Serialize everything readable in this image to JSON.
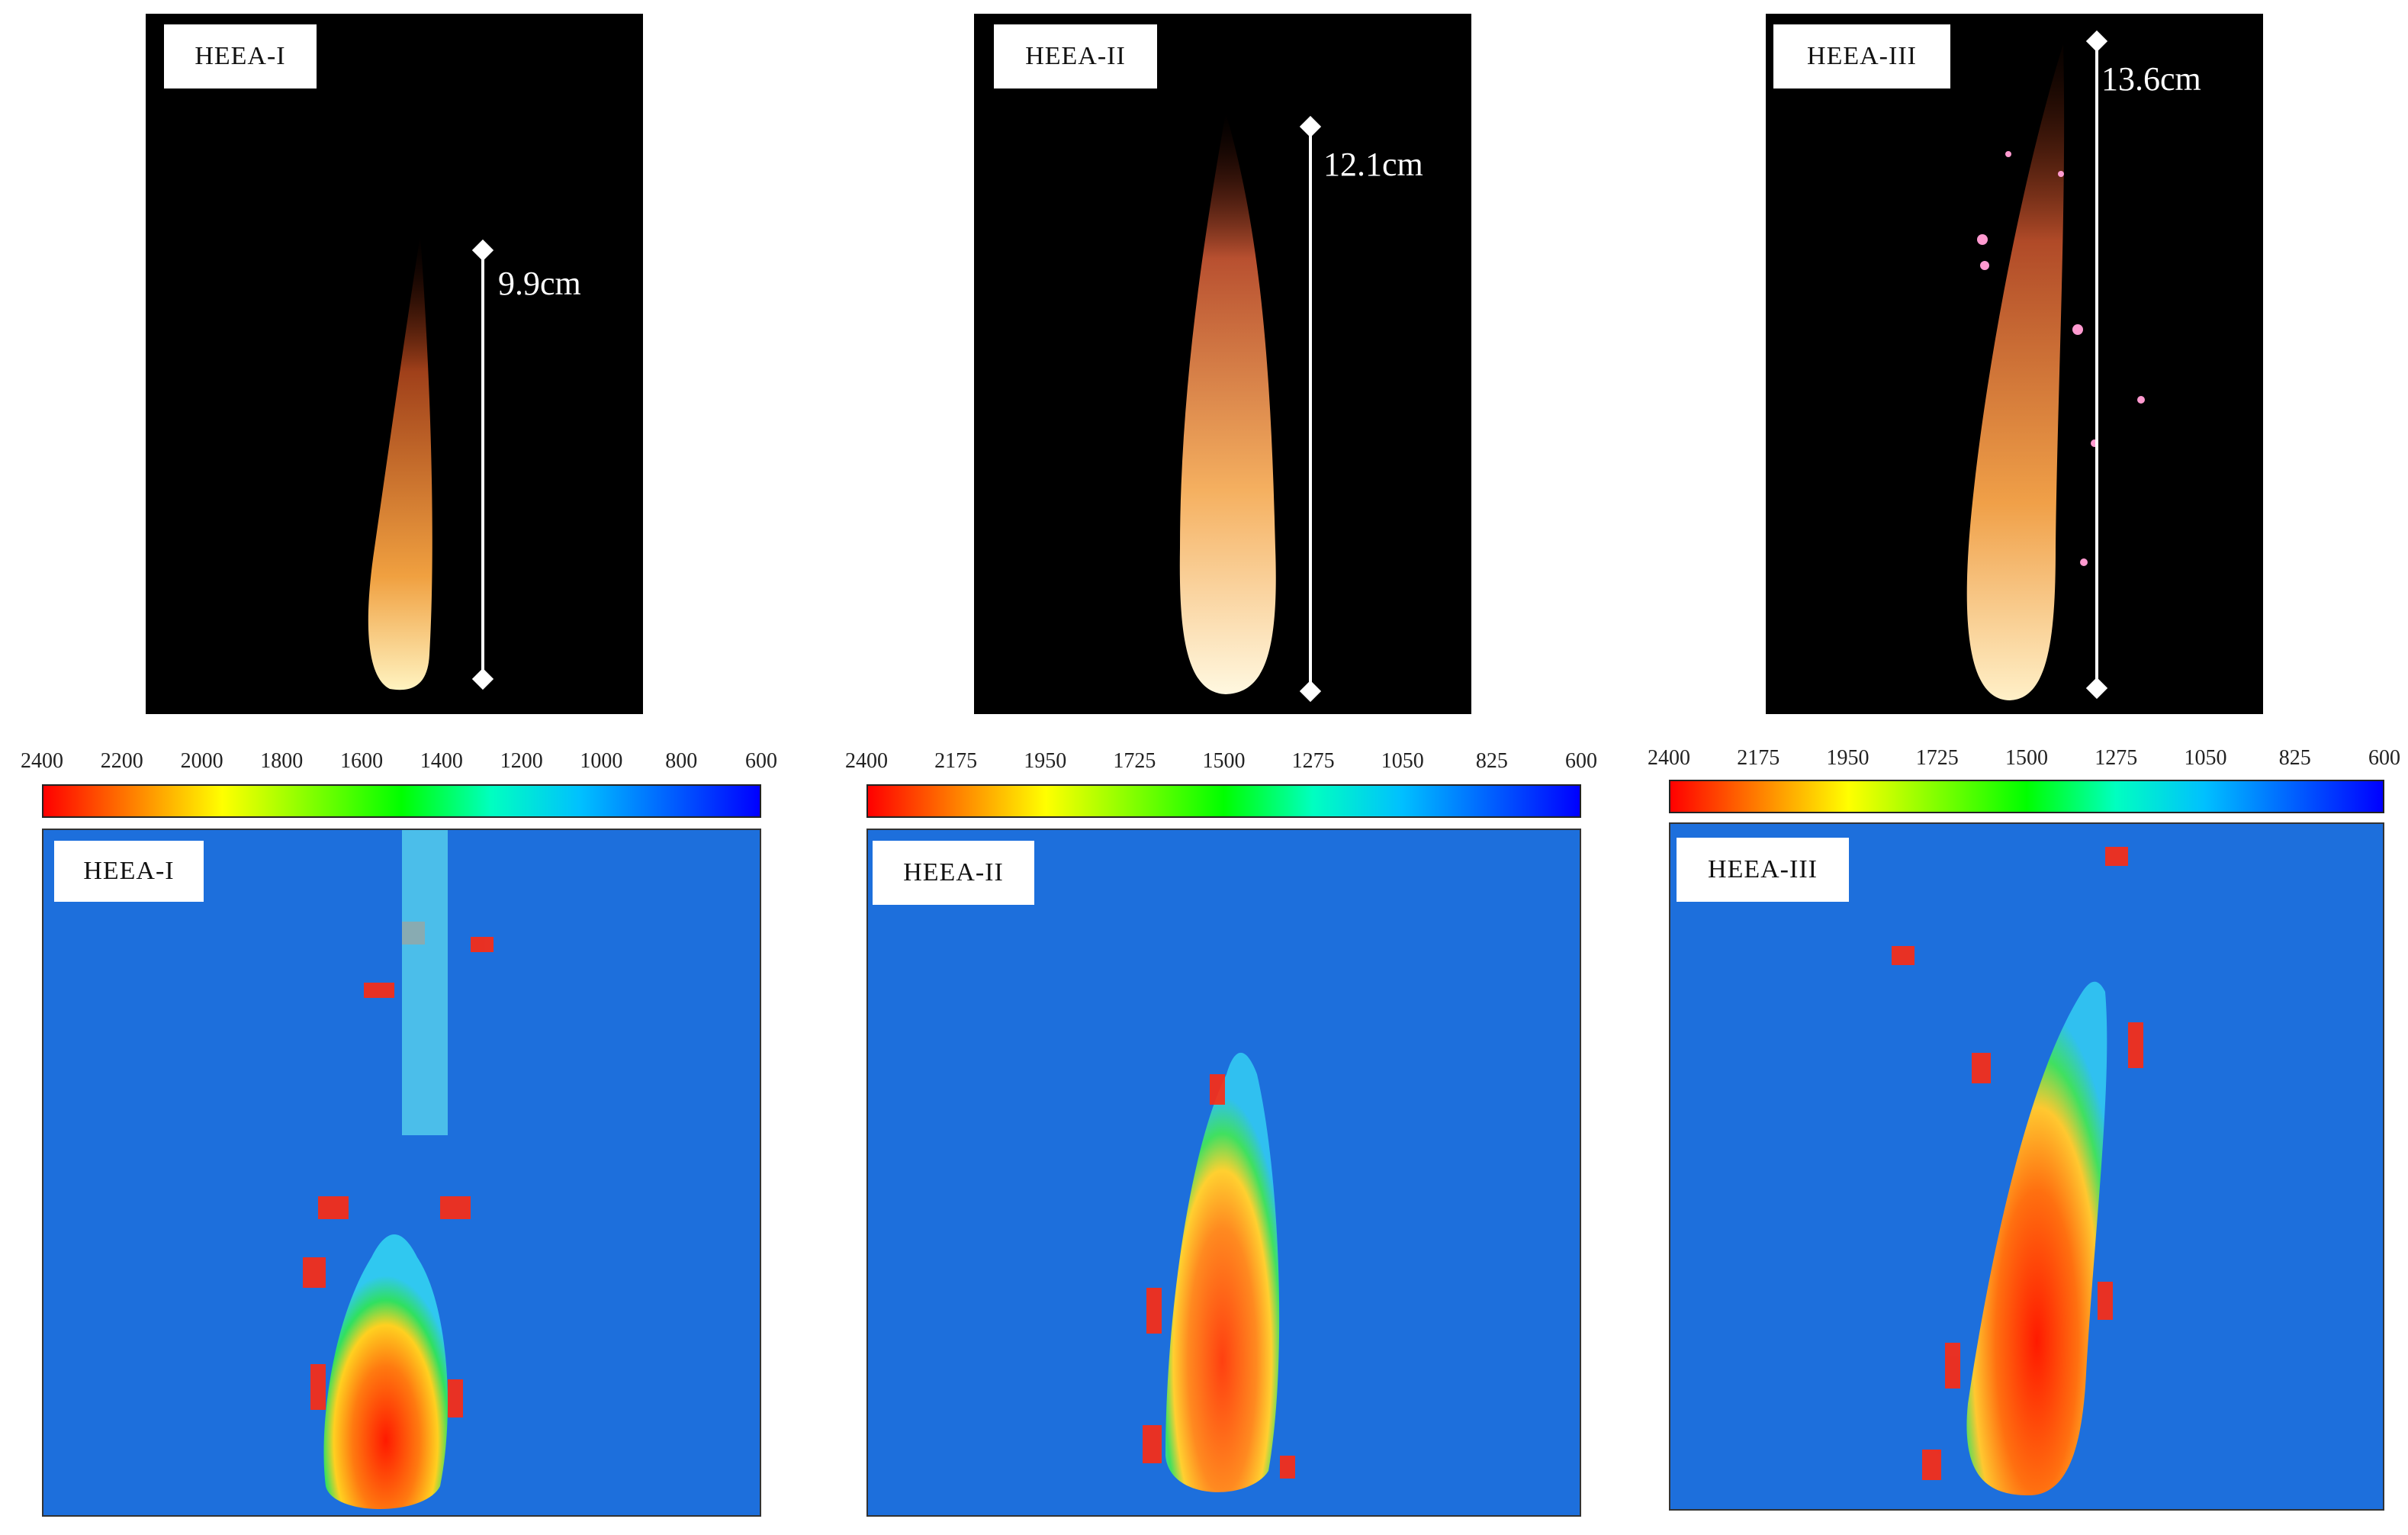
{
  "photos": [
    {
      "label": "HEEA-I",
      "height": "9.9cm"
    },
    {
      "label": "HEEA-II",
      "height": "12.1cm"
    },
    {
      "label": "HEEA-III",
      "height": "13.6cm"
    }
  ],
  "thermal": [
    {
      "label": "HEEA-I",
      "ticks": [
        "2400",
        "2200",
        "2000",
        "1800",
        "1600",
        "1400",
        "1200",
        "1000",
        "800",
        "600"
      ]
    },
    {
      "label": "HEEA-II",
      "ticks": [
        "2400",
        "2175",
        "1950",
        "1725",
        "1500",
        "1275",
        "1050",
        "825",
        "600"
      ]
    },
    {
      "label": "HEEA-III",
      "ticks": [
        "2400",
        "2175",
        "1950",
        "1725",
        "1500",
        "1275",
        "1050",
        "825",
        "600"
      ]
    }
  ],
  "colors": {
    "background": "#1d6fdc",
    "scale": [
      "#ff0000",
      "#ff8000",
      "#ffff00",
      "#80ff00",
      "#00ff00",
      "#00ffc0",
      "#00c0ff",
      "#0060ff",
      "#0000ff"
    ]
  }
}
